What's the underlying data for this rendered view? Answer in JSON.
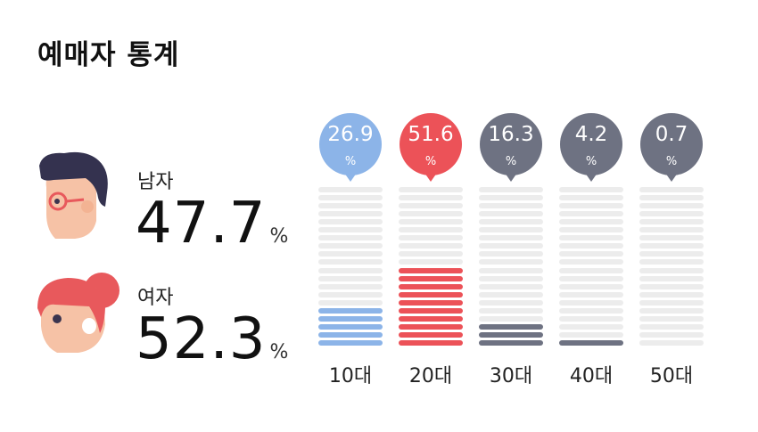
{
  "title": "예매자 통계",
  "gender": {
    "male": {
      "label": "남자",
      "value": "47.7",
      "unit": "%",
      "icon": "male-face-icon"
    },
    "female": {
      "label": "여자",
      "value": "52.3",
      "unit": "%",
      "icon": "female-face-icon"
    }
  },
  "unit_symbol": "%",
  "colors": {
    "bar_empty": "#ececec",
    "age_10": "#8cb4e8",
    "age_20": "#ec5258",
    "age_30": "#6e7282",
    "age_40": "#6e7282",
    "age_50": "#6e7282"
  },
  "chart_data": {
    "type": "bar",
    "categories": [
      "10대",
      "20대",
      "30대",
      "40대",
      "50대"
    ],
    "values": [
      26.9,
      51.6,
      16.3,
      4.2,
      0.7
    ],
    "value_labels": [
      "26.9",
      "51.6",
      "16.3",
      "4.2",
      "0.7"
    ],
    "segments_total": 20,
    "ylim": [
      0,
      100
    ],
    "title": "",
    "xlabel": "",
    "ylabel": ""
  }
}
